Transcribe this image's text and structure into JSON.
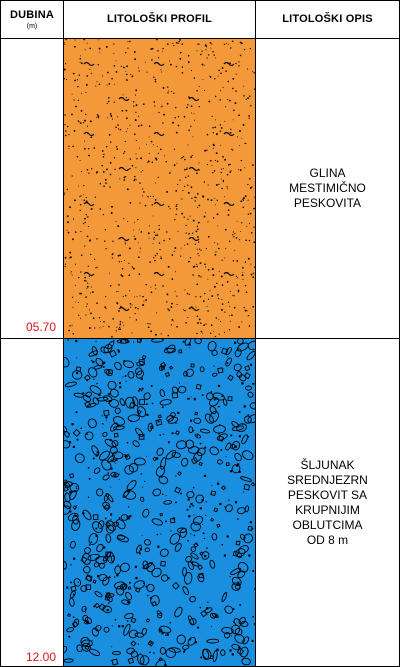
{
  "header": {
    "depth_title": "DUBINA",
    "depth_unit": "(m)",
    "profile_title": "LITOLOŠKI PROFIL",
    "description_title": "LITOLOŠKI OPIS"
  },
  "layers": [
    {
      "id": "clay",
      "depth_bottom": "05.70",
      "description": "GLINA\nMESTIMIČNO\nPESKOVITA",
      "color": "#f4993a",
      "pattern": "sandy-clay"
    },
    {
      "id": "gravel",
      "depth_bottom": "12.00",
      "description": "ŠLJUNAK\nSREDNJEZRN\nPESKOVIT SA\nKRUPNIJIM\nOBLUTCIMA\nOD 8 m",
      "color": "#1a8fe0",
      "pattern": "gravel"
    }
  ],
  "colors": {
    "depth_label": "#e0141e",
    "border": "#000000"
  }
}
